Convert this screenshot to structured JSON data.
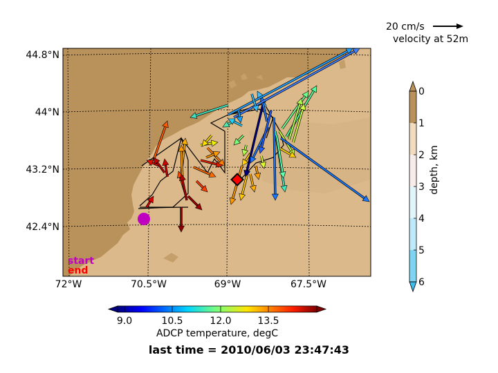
{
  "map": {
    "lat_labels": [
      {
        "text": "44.8°N",
        "lat": 44.8
      },
      {
        "text": "44°N",
        "lat": 44.0
      },
      {
        "text": "43.2°N",
        "lat": 43.2
      },
      {
        "text": "42.4°N",
        "lat": 42.4
      }
    ],
    "lon_labels": [
      {
        "text": "72°W",
        "lon": -72.0
      },
      {
        "text": "70.5°W",
        "lon": -70.5
      },
      {
        "text": "69°W",
        "lon": -69.0
      },
      {
        "text": "67.5°W",
        "lon": -67.5
      }
    ],
    "colors": {
      "land": "#b9915a",
      "shelf": "#dbb98a",
      "deep_shelf": "#d4b080"
    }
  },
  "legend": {
    "scale_label": "20 cm/s",
    "velocity_label": "velocity at 52m",
    "start_label": "start",
    "end_label": "end",
    "start_color": "#c000c0",
    "end_color": "#ff0000"
  },
  "depth_colorbar": {
    "label": "depth, km",
    "ticks": [
      "0",
      "1",
      "2",
      "3",
      "4",
      "5",
      "6"
    ]
  },
  "temp_colorbar": {
    "label": "ADCP temperature, degC",
    "ticks": [
      "9.0",
      "10.5",
      "12.0",
      "13.5"
    ]
  },
  "footer": {
    "last_time": "last time = 2010/06/03 23:47:43"
  }
}
